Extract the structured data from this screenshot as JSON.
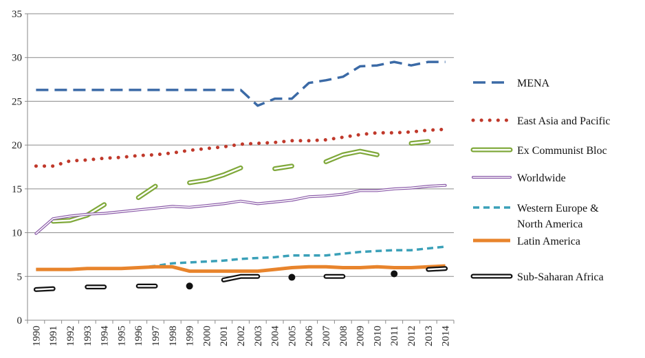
{
  "chart_data": {
    "type": "line",
    "title": "",
    "xlabel": "",
    "ylabel": "",
    "ylim": [
      0,
      35
    ],
    "yticks": [
      0,
      5,
      10,
      15,
      20,
      25,
      30,
      35
    ],
    "grid": "horizontal",
    "legend_placement": "right",
    "x": [
      1990,
      1991,
      1992,
      1993,
      1994,
      1995,
      1996,
      1997,
      1998,
      1999,
      2000,
      2001,
      2002,
      2003,
      2004,
      2005,
      2006,
      2007,
      2008,
      2009,
      2010,
      2011,
      2012,
      2013,
      2014
    ],
    "series": [
      {
        "name": "MENA",
        "style": "dash-long",
        "color": "#3b6aa6",
        "values": [
          26.3,
          26.3,
          26.3,
          26.3,
          26.3,
          26.3,
          26.3,
          26.3,
          26.3,
          26.3,
          26.3,
          26.3,
          26.3,
          24.5,
          25.3,
          25.3,
          27.1,
          27.4,
          27.8,
          29.0,
          29.1,
          29.5,
          29.1,
          29.5,
          29.5
        ]
      },
      {
        "name": "East Asia and Pacific",
        "style": "dotted",
        "color": "#c0392b",
        "values": [
          17.6,
          17.6,
          18.2,
          18.3,
          18.5,
          18.6,
          18.8,
          18.9,
          19.1,
          19.4,
          19.6,
          19.8,
          20.1,
          20.2,
          20.3,
          20.5,
          20.5,
          20.6,
          20.9,
          21.2,
          21.4,
          21.4,
          21.5,
          21.7,
          21.8
        ]
      },
      {
        "name": "Ex Communist Bloc",
        "style": "double-green",
        "color": "#7fa83a",
        "values": [
          null,
          11.3,
          11.4,
          12.0,
          13.2,
          null,
          14.0,
          15.3,
          null,
          15.7,
          16.0,
          16.6,
          17.4,
          null,
          17.3,
          17.6,
          null,
          18.1,
          18.9,
          19.3,
          18.9,
          null,
          20.2,
          20.4,
          null
        ]
      },
      {
        "name": "Worldwide",
        "style": "double-purple",
        "color": "#8a5aa8",
        "values": [
          9.9,
          11.6,
          11.9,
          12.1,
          12.2,
          12.4,
          12.6,
          12.8,
          13.0,
          12.9,
          13.1,
          13.3,
          13.6,
          13.3,
          13.5,
          13.7,
          14.1,
          14.2,
          14.4,
          14.8,
          14.8,
          15.0,
          15.1,
          15.3,
          15.4
        ]
      },
      {
        "name": "Western Europe & North America",
        "style": "dash-short",
        "color": "#3aa0b8",
        "values": [
          5.8,
          5.8,
          5.8,
          5.9,
          5.9,
          5.9,
          6.0,
          6.2,
          6.5,
          6.6,
          6.7,
          6.8,
          7.0,
          7.1,
          7.2,
          7.4,
          7.4,
          7.4,
          7.6,
          7.8,
          7.9,
          8.0,
          8.0,
          8.2,
          8.4
        ]
      },
      {
        "name": "Latin America",
        "style": "solid-thick",
        "color": "#e8842c",
        "values": [
          5.8,
          5.8,
          5.8,
          5.9,
          5.9,
          5.9,
          6.0,
          6.1,
          6.1,
          5.6,
          5.6,
          5.6,
          5.6,
          5.6,
          5.8,
          6.0,
          6.1,
          6.1,
          6.0,
          6.0,
          6.1,
          6.0,
          6.0,
          6.1,
          6.2
        ]
      },
      {
        "name": "Sub-Saharan Africa",
        "style": "double-black",
        "color": "#111111",
        "values": [
          3.5,
          3.6,
          null,
          3.8,
          3.8,
          null,
          3.9,
          3.9,
          null,
          3.9,
          null,
          4.6,
          5.0,
          5.0,
          null,
          4.9,
          null,
          5.0,
          5.0,
          null,
          null,
          5.3,
          null,
          5.8,
          5.9
        ]
      }
    ],
    "legend": [
      {
        "label": "MENA"
      },
      {
        "label": "East Asia and Pacific"
      },
      {
        "label": "Ex Communist Bloc"
      },
      {
        "label": "Worldwide"
      },
      {
        "label": "Western Europe &",
        "label2": "North America"
      },
      {
        "label": "Latin America"
      },
      {
        "label": "Sub-Saharan Africa"
      }
    ]
  }
}
